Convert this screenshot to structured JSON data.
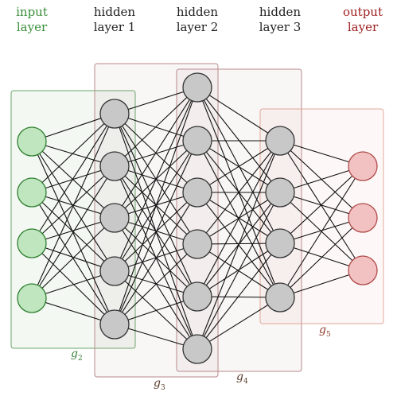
{
  "colors": {
    "input_text": "#3a8f3a",
    "hidden_text": "#222222",
    "output_text": "#a02020",
    "input_node_fill": "#bfe6bf",
    "input_node_stroke": "#2f7f2f",
    "hidden_node_fill": "#c8c8c8",
    "hidden_node_stroke": "#333333",
    "output_node_fill": "#f2c2c2",
    "output_node_stroke": "#b04a4a",
    "edge": "#111111",
    "g2_box": "#6aa56a",
    "g3_box": "#b88a8a",
    "g4_box": "#b88a8a",
    "g5_box": "#e0a898",
    "g2_label": "#3a7f3a",
    "g3_label": "#5a3a2a",
    "g4_label": "#5a3a2a",
    "g5_label": "#8a3a2a"
  },
  "columns": [
    {
      "id": "input",
      "label": "input\nlayer",
      "nodes": 4
    },
    {
      "id": "hidden1",
      "label": "hidden\nlayer 1",
      "nodes": 5
    },
    {
      "id": "hidden2",
      "label": "hidden\nlayer 2",
      "nodes": 6
    },
    {
      "id": "hidden3",
      "label": "hidden\nlayer 3",
      "nodes": 4
    },
    {
      "id": "output",
      "label": "output\nlayer",
      "nodes": 3
    }
  ],
  "groups": [
    {
      "id": "g2",
      "name": "g",
      "sub": "2"
    },
    {
      "id": "g3",
      "name": "g",
      "sub": "3"
    },
    {
      "id": "g4",
      "name": "g",
      "sub": "4"
    },
    {
      "id": "g5",
      "name": "g",
      "sub": "5"
    }
  ]
}
